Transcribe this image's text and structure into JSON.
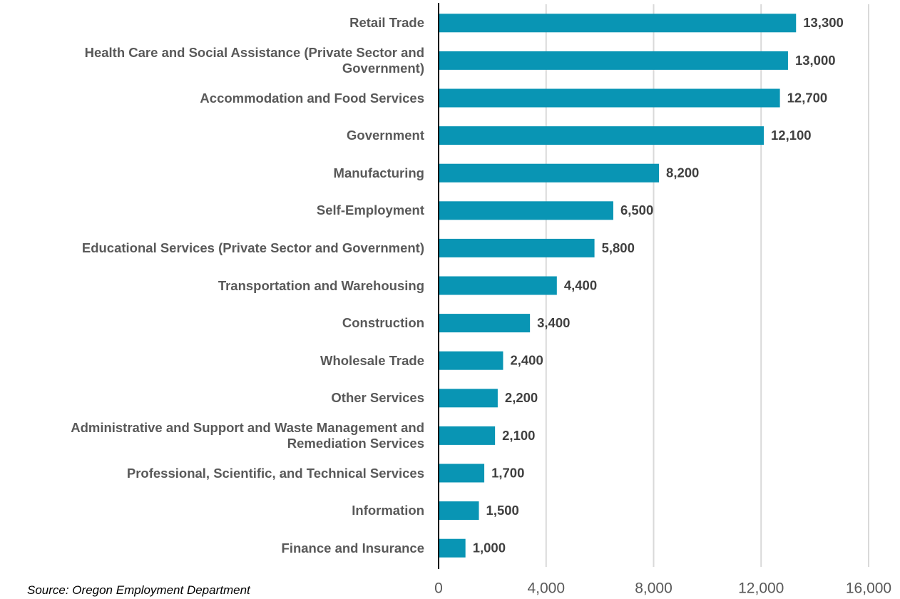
{
  "chart_data": {
    "type": "bar",
    "orientation": "horizontal",
    "categories": [
      "Retail Trade",
      "Health Care and Social Assistance (Private Sector and Government)",
      "Accommodation and Food Services",
      "Government",
      "Manufacturing",
      "Self-Employment",
      "Educational Services (Private Sector and Government)",
      "Transportation and Warehousing",
      "Construction",
      "Wholesale Trade",
      "Other Services",
      "Administrative and Support and Waste Management and Remediation Services",
      "Professional, Scientific, and Technical Services",
      "Information",
      "Finance and Insurance"
    ],
    "values": [
      13300,
      13000,
      12700,
      12100,
      8200,
      6500,
      5800,
      4400,
      3400,
      2400,
      2200,
      2100,
      1700,
      1500,
      1000
    ],
    "value_labels": [
      "13,300",
      "13,000",
      "12,700",
      "12,100",
      "8,200",
      "6,500",
      "5,800",
      "4,400",
      "3,400",
      "2,400",
      "2,200",
      "2,100",
      "1,700",
      "1,500",
      "1,000"
    ],
    "color": "#0995b4",
    "xlim": [
      0,
      16000
    ],
    "xticks": [
      0,
      {
        "value": 4000,
        "label": "4,000"
      },
      {
        "value": 8000,
        "label": "8,000"
      },
      {
        "value": 12000,
        "label": "12,000"
      },
      {
        "value": 16000,
        "label": "16,000"
      }
    ],
    "grid": true,
    "source": "Source: Oregon Employment Department"
  }
}
